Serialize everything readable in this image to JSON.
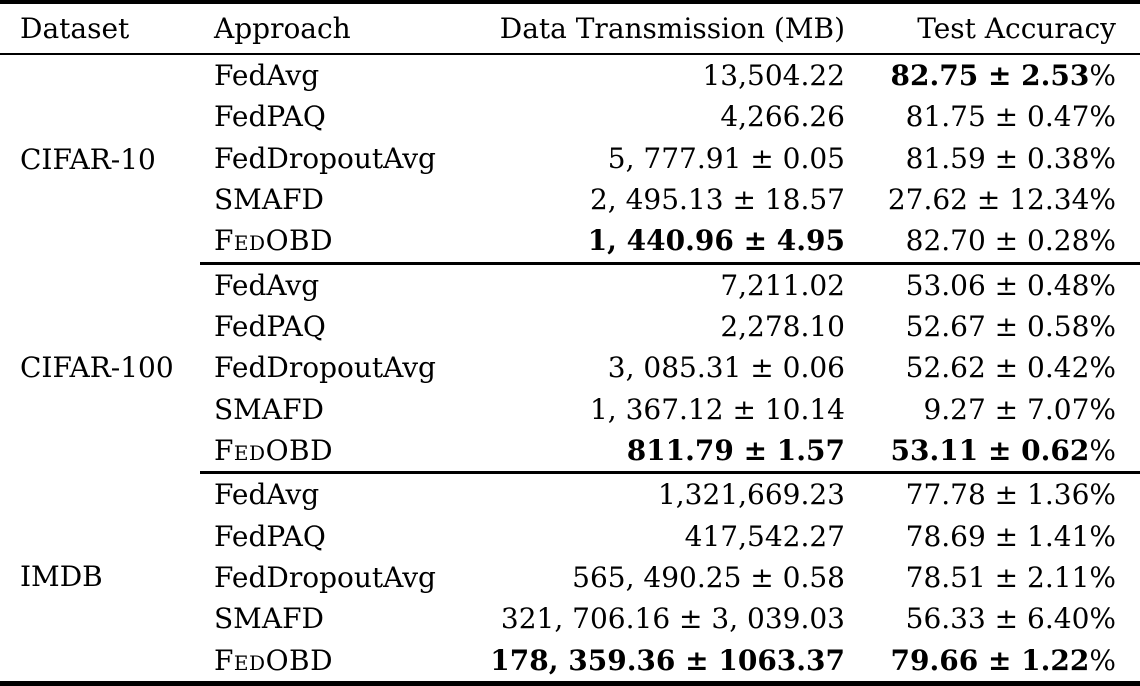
{
  "table": {
    "percent_sign": "%",
    "columns": [
      "Dataset",
      "Approach",
      "Data Transmission (MB)",
      "Test Accuracy"
    ],
    "groups": [
      {
        "dataset": "CIFAR-10",
        "rows": [
          {
            "approach": "FedAvg",
            "transmission": "13,504.22",
            "accuracy": "82.75 ± 2.53"
          },
          {
            "approach": "FedPAQ",
            "transmission": "4,266.26",
            "accuracy": "81.75 ± 0.47"
          },
          {
            "approach": "FedDropoutAvg",
            "transmission": "5, 777.91 ± 0.05",
            "accuracy": "81.59 ± 0.38"
          },
          {
            "approach": "SMAFD",
            "transmission": "2, 495.13 ± 18.57",
            "accuracy": "27.62 ± 12.34"
          },
          {
            "approach": "FedOBD",
            "transmission": "1, 440.96 ± 4.95",
            "accuracy": "82.70 ± 0.28"
          }
        ]
      },
      {
        "dataset": "CIFAR-100",
        "rows": [
          {
            "approach": "FedAvg",
            "transmission": "7,211.02",
            "accuracy": "53.06 ± 0.48"
          },
          {
            "approach": "FedPAQ",
            "transmission": "2,278.10",
            "accuracy": "52.67 ± 0.58"
          },
          {
            "approach": "FedDropoutAvg",
            "transmission": "3, 085.31 ± 0.06",
            "accuracy": "52.62 ± 0.42"
          },
          {
            "approach": "SMAFD",
            "transmission": "1, 367.12 ± 10.14",
            "accuracy": "9.27 ± 7.07"
          },
          {
            "approach": "FedOBD",
            "transmission": "811.79 ± 1.57",
            "accuracy": "53.11 ± 0.62"
          }
        ]
      },
      {
        "dataset": "IMDB",
        "rows": [
          {
            "approach": "FedAvg",
            "transmission": "1,321,669.23",
            "accuracy": "77.78 ± 1.36"
          },
          {
            "approach": "FedPAQ",
            "transmission": "417,542.27",
            "accuracy": "78.69 ± 1.41"
          },
          {
            "approach": "FedDropoutAvg",
            "transmission": "565, 490.25 ± 0.58",
            "accuracy": "78.51 ± 2.11"
          },
          {
            "approach": "SMAFD",
            "transmission": "321, 706.16 ± 3, 039.03",
            "accuracy": "56.33 ± 6.40"
          },
          {
            "approach": "FedOBD",
            "transmission": "178, 359.36 ± 1063.37",
            "accuracy": "79.66 ± 1.22"
          }
        ]
      }
    ]
  }
}
